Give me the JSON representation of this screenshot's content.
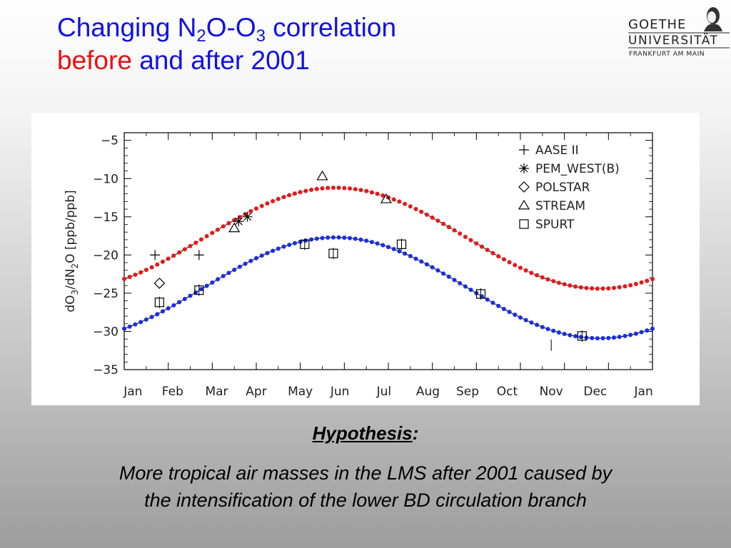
{
  "slide": {
    "title": {
      "line1_part1": "Changing N",
      "line1_sub1": "2",
      "line1_part2": "O-O",
      "line1_sub2": "3",
      "line1_part3": " correlation",
      "line2_before": "before",
      "line2_rest": " and after 2001"
    },
    "logo": {
      "line1": "GOETHE",
      "line2": "UNIVERSITÄT",
      "line3": "FRANKFURT AM MAIN"
    },
    "hypothesis": {
      "heading": "Hypothesis",
      "colon": ":",
      "text_line1": "More tropical air masses in the LMS after 2001 caused by",
      "text_line2": "the intensification of the lower BD circulation branch"
    }
  },
  "colors": {
    "title_blue": "#1010e8",
    "title_red": "#e81010",
    "curve_red": "#e31a1a",
    "curve_blue": "#1a2ee3"
  },
  "chart_data": {
    "type": "scatter",
    "xlabel": "",
    "ylabel": "dO3/dN2O [ppb/ppb]",
    "ylabel_parts": {
      "a": "dO",
      "sub1": "3",
      "b": "/dN",
      "sub2": "2",
      "c": "O  [ppb/ppb]"
    },
    "xlim": [
      0,
      12
    ],
    "ylim": [
      -35,
      -4
    ],
    "yticks": [
      -5,
      -10,
      -15,
      -20,
      -25,
      -30,
      -35
    ],
    "ytick_labels": [
      "−5",
      "−10",
      "−15",
      "−20",
      "−25",
      "−30",
      "−35"
    ],
    "month_labels": [
      "Jan",
      "Feb",
      "Mar",
      "Apr",
      "May",
      "Jun",
      "Jul",
      "Aug",
      "Sep",
      "Oct",
      "Nov",
      "Dec",
      "Jan"
    ],
    "month_positions": [
      0.2,
      1.1,
      2.1,
      3.0,
      4.0,
      4.9,
      5.9,
      6.9,
      7.8,
      8.7,
      9.7,
      10.7,
      11.8
    ],
    "legend_position": "top-right",
    "fit_curves": [
      {
        "name": "",
        "color": "#e31a1a",
        "mean": -17.8,
        "amplitude": 6.6,
        "peak_month": 4.8,
        "period": 12
      },
      {
        "name": "",
        "color": "#1a2ee3",
        "mean": -24.3,
        "amplitude": 6.6,
        "peak_month": 4.8,
        "period": 12
      }
    ],
    "series": [
      {
        "name": "AASE II",
        "marker": "plus",
        "points": [
          [
            0.7,
            -20.0
          ],
          [
            1.7,
            -20.0
          ]
        ]
      },
      {
        "name": "PEM_WEST(B)",
        "marker": "asterisk",
        "points": [
          [
            2.6,
            -15.6
          ],
          [
            2.8,
            -15.0
          ]
        ]
      },
      {
        "name": "POLSTAR",
        "marker": "diamond",
        "points": [
          [
            0.8,
            -23.7
          ]
        ]
      },
      {
        "name": "STREAM",
        "marker": "triangle",
        "points": [
          [
            2.5,
            -16.5
          ],
          [
            4.5,
            -9.7
          ],
          [
            5.95,
            -12.7
          ]
        ]
      },
      {
        "name": "SPURT",
        "marker": "square",
        "points": [
          [
            0.8,
            -26.2
          ],
          [
            1.7,
            -24.6
          ],
          [
            4.1,
            -18.6
          ],
          [
            4.75,
            -19.8
          ],
          [
            6.3,
            -18.6
          ],
          [
            8.1,
            -25.1
          ],
          [
            10.4,
            -30.6
          ]
        ]
      },
      {
        "name": "",
        "marker": "errorbar",
        "points": [
          [
            0.8,
            -26.2
          ],
          [
            1.7,
            -24.6
          ],
          [
            4.1,
            -18.6
          ],
          [
            4.75,
            -19.8
          ],
          [
            6.3,
            -18.6
          ],
          [
            8.1,
            -25.1
          ],
          [
            9.7,
            -31.8
          ],
          [
            10.4,
            -30.6
          ]
        ]
      }
    ]
  }
}
